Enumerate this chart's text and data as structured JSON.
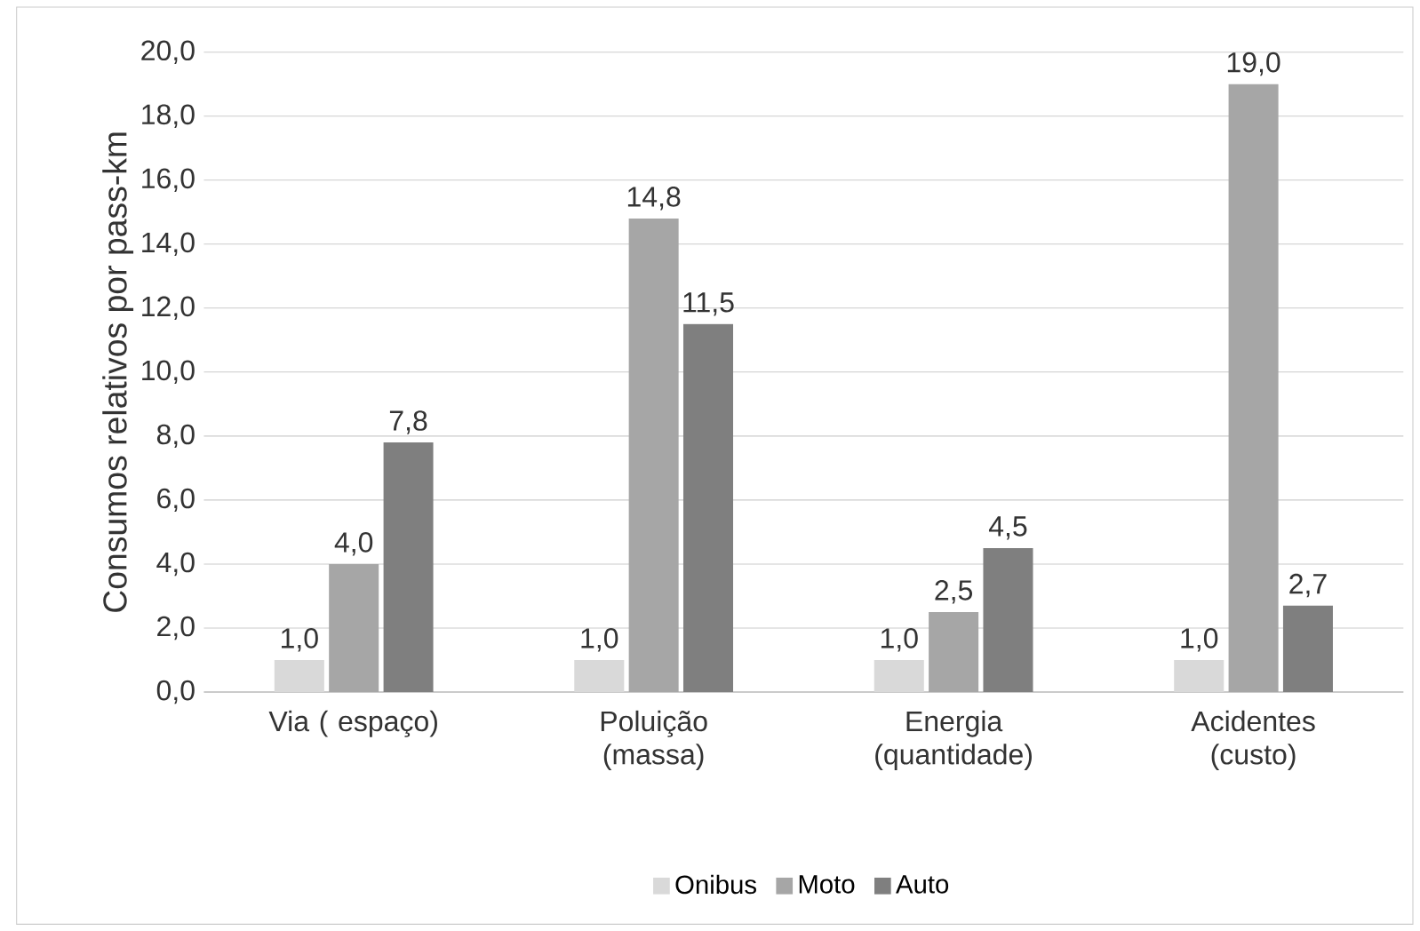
{
  "chart_data": {
    "type": "bar",
    "ylabel": "Consumos relativos  por pass-km",
    "categories": [
      "Via ( espaço)",
      "Poluição (massa)",
      "Energia (quantidade)",
      "Acidentes (custo)"
    ],
    "series": [
      {
        "name": "Onibus",
        "color": "#d9d9d9",
        "values": [
          1.0,
          1.0,
          1.0,
          1.0
        ],
        "value_labels": [
          "1,0",
          "1,0",
          "1,0",
          "1,0"
        ]
      },
      {
        "name": "Moto",
        "color": "#a6a6a6",
        "values": [
          4.0,
          14.8,
          2.5,
          19.0
        ],
        "value_labels": [
          "4,0",
          "14,8",
          "2,5",
          "19,0"
        ]
      },
      {
        "name": "Auto",
        "color": "#7f7f7f",
        "values": [
          7.8,
          11.5,
          4.5,
          2.7
        ],
        "value_labels": [
          "7,8",
          "11,5",
          "4,5",
          "2,7"
        ]
      }
    ],
    "ylim": [
      0,
      20
    ],
    "yticks": [
      {
        "value": 0,
        "label": "0,0"
      },
      {
        "value": 2,
        "label": "2,0"
      },
      {
        "value": 4,
        "label": "4,0"
      },
      {
        "value": 6,
        "label": "6,0"
      },
      {
        "value": 8,
        "label": "8,0"
      },
      {
        "value": 10,
        "label": "10,0"
      },
      {
        "value": 12,
        "label": "12,0"
      },
      {
        "value": 14,
        "label": "14,0"
      },
      {
        "value": 16,
        "label": "16,0"
      },
      {
        "value": 18,
        "label": "18,0"
      },
      {
        "value": 20,
        "label": "20,0"
      }
    ],
    "grid": "y",
    "legend": "bottom"
  }
}
